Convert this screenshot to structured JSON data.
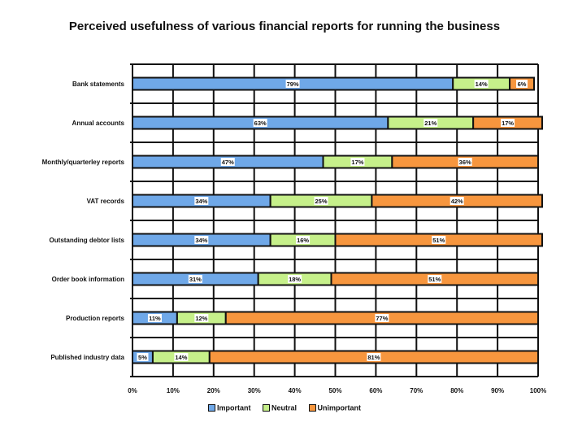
{
  "chart_data": {
    "type": "bar",
    "stacked": true,
    "orientation": "horizontal",
    "title": "Perceived usefulness of various financial reports for running the business",
    "categories": [
      "Bank statements",
      "Annual accounts",
      "Monthly/quarterley reports",
      "VAT records",
      "Outstanding debtor lists",
      "Order book information",
      "Production reports",
      "Published industry data"
    ],
    "series": [
      {
        "name": "Important",
        "color": "#6fa8e8",
        "values": [
          79,
          63,
          47,
          34,
          34,
          31,
          11,
          5
        ],
        "labels": [
          "79%",
          "63%",
          "47%",
          "34%",
          "34%",
          "31%",
          "11%",
          "5%"
        ]
      },
      {
        "name": "Neutral",
        "color": "#c6f08a",
        "values": [
          14,
          21,
          17,
          25,
          16,
          18,
          12,
          14
        ],
        "labels": [
          "14%",
          "21%",
          "17%",
          "25%",
          "16%",
          "18%",
          "12%",
          "14%"
        ]
      },
      {
        "name": "Unimportant",
        "color": "#f7963e",
        "values": [
          6,
          17,
          36,
          42,
          51,
          51,
          77,
          81
        ],
        "labels": [
          "6%",
          "17%",
          "36%",
          "42%",
          "51%",
          "51%",
          "77%",
          "81%"
        ]
      }
    ],
    "x_ticks": [
      "0%",
      "10%",
      "20%",
      "30%",
      "40%",
      "50%",
      "60%",
      "70%",
      "80%",
      "90%",
      "100%"
    ],
    "xlim": [
      0,
      100
    ],
    "grid": true,
    "legend_position": "bottom"
  }
}
